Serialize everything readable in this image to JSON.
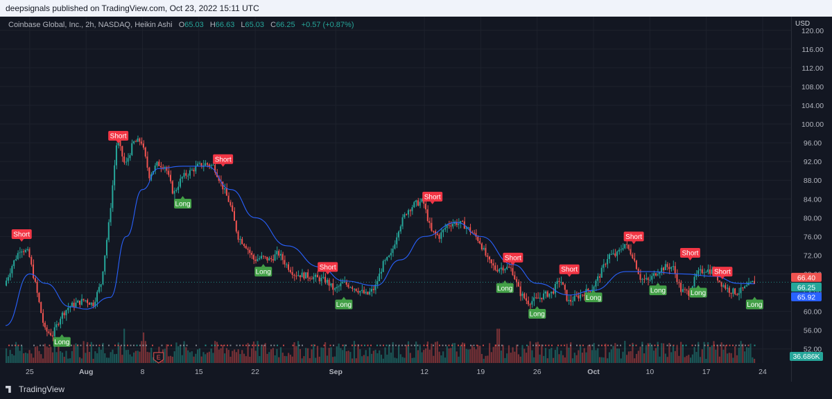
{
  "header": {
    "publish_text": "deepsignals published on TradingView.com, Oct 23, 2022 15:11 UTC"
  },
  "legend": {
    "symbol": "Coinbase Global, Inc., 2h, NASDAQ, Heikin Ashi",
    "o_label": "O",
    "o_value": "65.03",
    "h_label": "H",
    "h_value": "66.63",
    "l_label": "L",
    "l_value": "65.03",
    "c_label": "C",
    "c_value": "66.25",
    "change": "+0.57 (+0.87%)"
  },
  "brand": {
    "name": "TradingView",
    "icon": "tradingview-logo-icon"
  },
  "colors": {
    "up": "#26a69a",
    "down": "#ef5350",
    "ma": "#2962ff",
    "background": "#131722",
    "grid": "#1e222d",
    "axis_text": "#b2b5be"
  },
  "chart_data": {
    "type": "candlestick",
    "currency_label": "USD",
    "ylim": [
      49,
      121
    ],
    "y_ticks": [
      120,
      116,
      112,
      108,
      104,
      100,
      96,
      92,
      88,
      84,
      80,
      76,
      72,
      68,
      64,
      60,
      56,
      52
    ],
    "y_tick_labels": [
      "120.00",
      "116.00",
      "112.00",
      "108.00",
      "104.00",
      "100.00",
      "96.00",
      "92.00",
      "88.00",
      "84.00",
      "80.00",
      "76.00",
      "72.00",
      "68.00",
      "64.00",
      "60.00",
      "56.00",
      "52.00"
    ],
    "x_range": [
      "2022-07-22",
      "2022-10-24"
    ],
    "x_ticks": [
      {
        "date": "2022-07-25",
        "label": "25"
      },
      {
        "date": "2022-08-01",
        "label": "Aug",
        "bold": true
      },
      {
        "date": "2022-08-08",
        "label": "8"
      },
      {
        "date": "2022-08-15",
        "label": "15"
      },
      {
        "date": "2022-08-22",
        "label": "22"
      },
      {
        "date": "2022-09-01",
        "label": "Sep",
        "bold": true
      },
      {
        "date": "2022-09-12",
        "label": "12"
      },
      {
        "date": "2022-09-19",
        "label": "19"
      },
      {
        "date": "2022-09-26",
        "label": "26"
      },
      {
        "date": "2022-10-03",
        "label": "Oct",
        "bold": true
      },
      {
        "date": "2022-10-10",
        "label": "10"
      },
      {
        "date": "2022-10-17",
        "label": "17"
      },
      {
        "date": "2022-10-24",
        "label": "24"
      }
    ],
    "price_path": [
      {
        "date": "2022-07-22",
        "price": 65.5
      },
      {
        "date": "2022-07-23",
        "price": 70
      },
      {
        "date": "2022-07-24",
        "price": 73.5
      },
      {
        "date": "2022-07-25",
        "price": 72.5
      },
      {
        "date": "2022-07-26",
        "price": 64.5
      },
      {
        "date": "2022-07-27",
        "price": 56
      },
      {
        "date": "2022-07-28",
        "price": 55
      },
      {
        "date": "2022-07-29",
        "price": 59
      },
      {
        "date": "2022-07-30",
        "price": 61
      },
      {
        "date": "2022-08-01",
        "price": 62.5
      },
      {
        "date": "2022-08-02",
        "price": 61.5
      },
      {
        "date": "2022-08-03",
        "price": 66
      },
      {
        "date": "2022-08-04",
        "price": 79
      },
      {
        "date": "2022-08-05",
        "price": 97
      },
      {
        "date": "2022-08-06",
        "price": 91
      },
      {
        "date": "2022-08-07",
        "price": 96
      },
      {
        "date": "2022-08-08",
        "price": 96.5
      },
      {
        "date": "2022-08-09",
        "price": 89
      },
      {
        "date": "2022-08-10",
        "price": 91.5
      },
      {
        "date": "2022-08-11",
        "price": 91
      },
      {
        "date": "2022-08-12",
        "price": 85
      },
      {
        "date": "2022-08-13",
        "price": 88.5
      },
      {
        "date": "2022-08-15",
        "price": 91
      },
      {
        "date": "2022-08-16",
        "price": 91.5
      },
      {
        "date": "2022-08-17",
        "price": 91
      },
      {
        "date": "2022-08-18",
        "price": 87
      },
      {
        "date": "2022-08-19",
        "price": 83
      },
      {
        "date": "2022-08-20",
        "price": 76
      },
      {
        "date": "2022-08-21",
        "price": 74
      },
      {
        "date": "2022-08-22",
        "price": 71
      },
      {
        "date": "2022-08-23",
        "price": 71.5
      },
      {
        "date": "2022-08-24",
        "price": 71
      },
      {
        "date": "2022-08-25",
        "price": 72.5
      },
      {
        "date": "2022-08-26",
        "price": 70
      },
      {
        "date": "2022-08-27",
        "price": 68
      },
      {
        "date": "2022-08-29",
        "price": 67.5
      },
      {
        "date": "2022-08-31",
        "price": 66.5
      },
      {
        "date": "2022-09-01",
        "price": 64.5
      },
      {
        "date": "2022-09-02",
        "price": 66
      },
      {
        "date": "2022-09-03",
        "price": 65.5
      },
      {
        "date": "2022-09-05",
        "price": 63.5
      },
      {
        "date": "2022-09-06",
        "price": 65
      },
      {
        "date": "2022-09-07",
        "price": 70
      },
      {
        "date": "2022-09-08",
        "price": 72
      },
      {
        "date": "2022-09-09",
        "price": 78
      },
      {
        "date": "2022-09-10",
        "price": 81.5
      },
      {
        "date": "2022-09-11",
        "price": 83
      },
      {
        "date": "2022-09-12",
        "price": 83.5
      },
      {
        "date": "2022-09-13",
        "price": 77
      },
      {
        "date": "2022-09-14",
        "price": 76
      },
      {
        "date": "2022-09-15",
        "price": 78.5
      },
      {
        "date": "2022-09-16",
        "price": 79
      },
      {
        "date": "2022-09-17",
        "price": 78.5
      },
      {
        "date": "2022-09-18",
        "price": 77
      },
      {
        "date": "2022-09-19",
        "price": 75
      },
      {
        "date": "2022-09-20",
        "price": 71
      },
      {
        "date": "2022-09-21",
        "price": 69
      },
      {
        "date": "2022-09-22",
        "price": 69.5
      },
      {
        "date": "2022-09-23",
        "price": 69
      },
      {
        "date": "2022-09-24",
        "price": 64
      },
      {
        "date": "2022-09-25",
        "price": 62
      },
      {
        "date": "2022-09-26",
        "price": 62.5
      },
      {
        "date": "2022-09-27",
        "price": 63.5
      },
      {
        "date": "2022-09-28",
        "price": 64
      },
      {
        "date": "2022-09-29",
        "price": 67
      },
      {
        "date": "2022-09-30",
        "price": 62
      },
      {
        "date": "2022-10-01",
        "price": 63
      },
      {
        "date": "2022-10-03",
        "price": 65
      },
      {
        "date": "2022-10-04",
        "price": 68
      },
      {
        "date": "2022-10-05",
        "price": 72
      },
      {
        "date": "2022-10-06",
        "price": 72
      },
      {
        "date": "2022-10-07",
        "price": 74.5
      },
      {
        "date": "2022-10-08",
        "price": 72
      },
      {
        "date": "2022-10-09",
        "price": 67
      },
      {
        "date": "2022-10-10",
        "price": 66.5
      },
      {
        "date": "2022-10-11",
        "price": 68.5
      },
      {
        "date": "2022-10-12",
        "price": 69.5
      },
      {
        "date": "2022-10-13",
        "price": 69.5
      },
      {
        "date": "2022-10-14",
        "price": 64.5
      },
      {
        "date": "2022-10-15",
        "price": 64
      },
      {
        "date": "2022-10-16",
        "price": 68
      },
      {
        "date": "2022-10-17",
        "price": 69
      },
      {
        "date": "2022-10-18",
        "price": 68.5
      },
      {
        "date": "2022-10-19",
        "price": 66
      },
      {
        "date": "2022-10-20",
        "price": 64.5
      },
      {
        "date": "2022-10-21",
        "price": 64
      },
      {
        "date": "2022-10-22",
        "price": 65
      },
      {
        "date": "2022-10-23",
        "price": 66.25
      }
    ],
    "moving_average": {
      "color": "#2962ff",
      "points": [
        {
          "date": "2022-07-22",
          "price": 57
        },
        {
          "date": "2022-07-25",
          "price": 68
        },
        {
          "date": "2022-07-27",
          "price": 66
        },
        {
          "date": "2022-07-30",
          "price": 61
        },
        {
          "date": "2022-08-01",
          "price": 60.5
        },
        {
          "date": "2022-08-04",
          "price": 63
        },
        {
          "date": "2022-08-06",
          "price": 76
        },
        {
          "date": "2022-08-08",
          "price": 86
        },
        {
          "date": "2022-08-10",
          "price": 90.5
        },
        {
          "date": "2022-08-13",
          "price": 91
        },
        {
          "date": "2022-08-16",
          "price": 91
        },
        {
          "date": "2022-08-19",
          "price": 86
        },
        {
          "date": "2022-08-22",
          "price": 80
        },
        {
          "date": "2022-08-26",
          "price": 74
        },
        {
          "date": "2022-08-30",
          "price": 69.5
        },
        {
          "date": "2022-09-02",
          "price": 66.5
        },
        {
          "date": "2022-09-06",
          "price": 65.5
        },
        {
          "date": "2022-09-09",
          "price": 71
        },
        {
          "date": "2022-09-12",
          "price": 76
        },
        {
          "date": "2022-09-16",
          "price": 79
        },
        {
          "date": "2022-09-19",
          "price": 76
        },
        {
          "date": "2022-09-23",
          "price": 70
        },
        {
          "date": "2022-09-26",
          "price": 66
        },
        {
          "date": "2022-09-30",
          "price": 63.5
        },
        {
          "date": "2022-10-03",
          "price": 64.5
        },
        {
          "date": "2022-10-07",
          "price": 68.5
        },
        {
          "date": "2022-10-10",
          "price": 68.5
        },
        {
          "date": "2022-10-14",
          "price": 68
        },
        {
          "date": "2022-10-18",
          "price": 67.5
        },
        {
          "date": "2022-10-21",
          "price": 66
        },
        {
          "date": "2022-10-23",
          "price": 65.9
        }
      ]
    },
    "signals": [
      {
        "type": "short",
        "label": "Short",
        "date": "2022-07-24",
        "price": 76.5
      },
      {
        "type": "long",
        "label": "Long",
        "date": "2022-07-29",
        "price": 53.5
      },
      {
        "type": "short",
        "label": "Short",
        "date": "2022-08-05",
        "price": 97.5
      },
      {
        "type": "long",
        "label": "Long",
        "date": "2022-08-13",
        "price": 83
      },
      {
        "type": "short",
        "label": "Short",
        "date": "2022-08-18",
        "price": 92.5
      },
      {
        "type": "long",
        "label": "Long",
        "date": "2022-08-23",
        "price": 68.5
      },
      {
        "type": "short",
        "label": "Short",
        "date": "2022-08-31",
        "price": 69.5
      },
      {
        "type": "long",
        "label": "Long",
        "date": "2022-09-02",
        "price": 61.5
      },
      {
        "type": "short",
        "label": "Short",
        "date": "2022-09-13",
        "price": 84.5
      },
      {
        "type": "long",
        "label": "Long",
        "date": "2022-09-22",
        "price": 65
      },
      {
        "type": "short",
        "label": "Short",
        "date": "2022-09-23",
        "price": 71.5
      },
      {
        "type": "long",
        "label": "Long",
        "date": "2022-09-26",
        "price": 59.5
      },
      {
        "type": "short",
        "label": "Short",
        "date": "2022-09-30",
        "price": 69
      },
      {
        "type": "long",
        "label": "Long",
        "date": "2022-10-03",
        "price": 63
      },
      {
        "type": "short",
        "label": "Short",
        "date": "2022-10-08",
        "price": 76
      },
      {
        "type": "long",
        "label": "Long",
        "date": "2022-10-11",
        "price": 64.5
      },
      {
        "type": "short",
        "label": "Short",
        "date": "2022-10-15",
        "price": 72.5
      },
      {
        "type": "long",
        "label": "Long",
        "date": "2022-10-16",
        "price": 64
      },
      {
        "type": "short",
        "label": "Short",
        "date": "2022-10-19",
        "price": 68.5
      },
      {
        "type": "long",
        "label": "Long",
        "date": "2022-10-23",
        "price": 61.5
      }
    ],
    "price_tags": [
      {
        "value": 66.4,
        "label": "66.40",
        "color": "#ef5350"
      },
      {
        "value": 66.25,
        "label": "66.25",
        "color": "#26a69a"
      },
      {
        "value": 65.92,
        "label": "65.92",
        "color": "#2962ff"
      }
    ],
    "volume": {
      "last_label": "36.686K",
      "last_color": "#26a69a",
      "spikes": [
        {
          "date": "2022-08-05",
          "level": 0.95,
          "color": "#26a69a"
        },
        {
          "date": "2022-08-06",
          "level": 0.45,
          "color": "#26a69a"
        },
        {
          "date": "2022-08-08",
          "level": 0.4,
          "color": "#ef5350"
        },
        {
          "date": "2022-09-21",
          "level": 0.45,
          "color": "#ef5350"
        },
        {
          "date": "2022-10-14",
          "level": 0.43,
          "color": "#ef5350"
        }
      ]
    },
    "earnings_marker": {
      "label": "E",
      "date": "2022-08-10"
    }
  }
}
